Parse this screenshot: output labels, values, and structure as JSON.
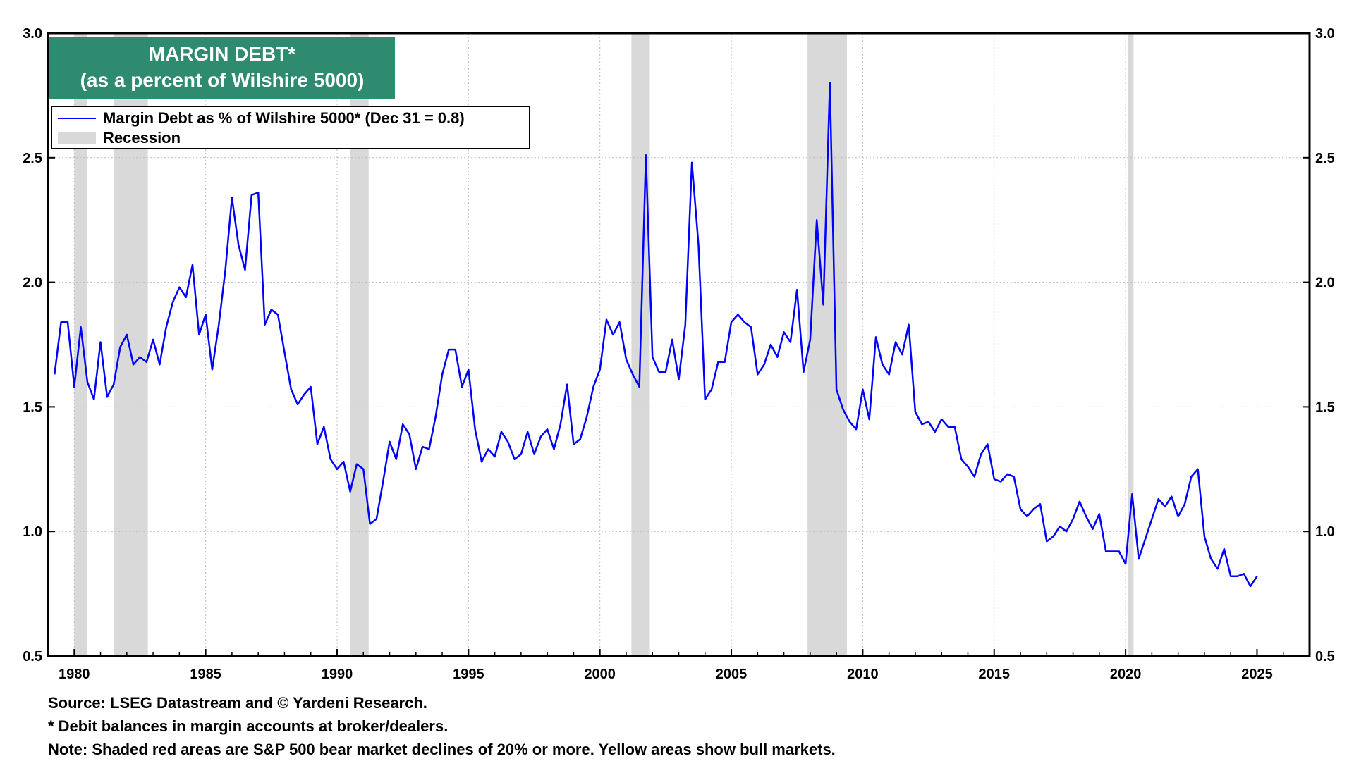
{
  "title": {
    "line1": "MARGIN DEBT*",
    "line2": "(as a percent of Wilshire 5000)"
  },
  "legend": {
    "series_label": "Margin Debt as % of Wilshire 5000*  (Dec 31 = 0.8)",
    "recession_label": "Recession"
  },
  "footnotes": {
    "source": "Source: LSEG Datastream and © Yardeni Research.",
    "note1": "* Debit balances in margin accounts at broker/dealers.",
    "note2": "Note: Shaded red areas are S&P 500 bear market declines of 20% or more. Yellow areas show bull markets."
  },
  "colors": {
    "series": "#0000ff",
    "recession": "#d9d9d9",
    "title_bg": "#2e8b6f",
    "grid": "#bbbbbb"
  },
  "chart_data": {
    "type": "line",
    "xlim": [
      1979,
      2027
    ],
    "ylim": [
      0.5,
      3.0
    ],
    "x_ticks": [
      1980,
      1985,
      1990,
      1995,
      2000,
      2005,
      2010,
      2015,
      2020,
      2025
    ],
    "x_tick_labels": [
      "1980",
      "1985",
      "1990",
      "1995",
      "2000",
      "2005",
      "2010",
      "2015",
      "2020",
      "2025"
    ],
    "y_ticks": [
      0.5,
      1.0,
      1.5,
      2.0,
      2.5,
      3.0
    ],
    "y_tick_labels": [
      "0.5",
      "1.0",
      "1.5",
      "2.0",
      "2.5",
      "3.0"
    ],
    "grid": true,
    "legend_position": "top-left",
    "recessions": [
      [
        1980.0,
        1980.5
      ],
      [
        1981.5,
        1982.8
      ],
      [
        1990.5,
        1991.2
      ],
      [
        2001.2,
        2001.9
      ],
      [
        2007.9,
        2009.4
      ],
      [
        2020.1,
        2020.3
      ]
    ],
    "series": [
      {
        "name": "Margin Debt as % of Wilshire 5000*  (Dec 31 = 0.8)",
        "x": [
          1979.25,
          1979.5,
          1979.75,
          1980.0,
          1980.25,
          1980.5,
          1980.75,
          1981.0,
          1981.25,
          1981.5,
          1981.75,
          1982.0,
          1982.25,
          1982.5,
          1982.75,
          1983.0,
          1983.25,
          1983.5,
          1983.75,
          1984.0,
          1984.25,
          1984.5,
          1984.75,
          1985.0,
          1985.25,
          1985.5,
          1985.75,
          1986.0,
          1986.25,
          1986.5,
          1986.75,
          1987.0,
          1987.25,
          1987.5,
          1987.75,
          1988.0,
          1988.25,
          1988.5,
          1988.75,
          1989.0,
          1989.25,
          1989.5,
          1989.75,
          1990.0,
          1990.25,
          1990.5,
          1990.75,
          1991.0,
          1991.25,
          1991.5,
          1991.75,
          1992.0,
          1992.25,
          1992.5,
          1992.75,
          1993.0,
          1993.25,
          1993.5,
          1993.75,
          1994.0,
          1994.25,
          1994.5,
          1994.75,
          1995.0,
          1995.25,
          1995.5,
          1995.75,
          1996.0,
          1996.25,
          1996.5,
          1996.75,
          1997.0,
          1997.25,
          1997.5,
          1997.75,
          1998.0,
          1998.25,
          1998.5,
          1998.75,
          1999.0,
          1999.25,
          1999.5,
          1999.75,
          2000.0,
          2000.25,
          2000.5,
          2000.75,
          2001.0,
          2001.25,
          2001.5,
          2001.75,
          2002.0,
          2002.25,
          2002.5,
          2002.75,
          2003.0,
          2003.25,
          2003.5,
          2003.75,
          2004.0,
          2004.25,
          2004.5,
          2004.75,
          2005.0,
          2005.25,
          2005.5,
          2005.75,
          2006.0,
          2006.25,
          2006.5,
          2006.75,
          2007.0,
          2007.25,
          2007.5,
          2007.75,
          2008.0,
          2008.25,
          2008.5,
          2008.75,
          2009.0,
          2009.25,
          2009.5,
          2009.75,
          2010.0,
          2010.25,
          2010.5,
          2010.75,
          2011.0,
          2011.25,
          2011.5,
          2011.75,
          2012.0,
          2012.25,
          2012.5,
          2012.75,
          2013.0,
          2013.25,
          2013.5,
          2013.75,
          2014.0,
          2014.25,
          2014.5,
          2014.75,
          2015.0,
          2015.25,
          2015.5,
          2015.75,
          2016.0,
          2016.25,
          2016.5,
          2016.75,
          2017.0,
          2017.25,
          2017.5,
          2017.75,
          2018.0,
          2018.25,
          2018.5,
          2018.75,
          2019.0,
          2019.25,
          2019.5,
          2019.75,
          2020.0,
          2020.25,
          2020.5,
          2020.75,
          2021.0,
          2021.25,
          2021.5,
          2021.75,
          2022.0,
          2022.25,
          2022.5,
          2022.75,
          2023.0,
          2023.25,
          2023.5,
          2023.75,
          2024.0,
          2024.25,
          2024.5,
          2024.75,
          2025.0
        ],
        "values": [
          1.63,
          1.84,
          1.84,
          1.58,
          1.82,
          1.6,
          1.53,
          1.76,
          1.54,
          1.59,
          1.74,
          1.79,
          1.67,
          1.7,
          1.68,
          1.77,
          1.67,
          1.82,
          1.92,
          1.98,
          1.94,
          2.07,
          1.79,
          1.87,
          1.65,
          1.83,
          2.05,
          2.34,
          2.15,
          2.05,
          2.35,
          2.36,
          1.83,
          1.89,
          1.87,
          1.72,
          1.57,
          1.51,
          1.55,
          1.58,
          1.35,
          1.42,
          1.29,
          1.25,
          1.28,
          1.16,
          1.27,
          1.25,
          1.03,
          1.05,
          1.2,
          1.36,
          1.29,
          1.43,
          1.39,
          1.25,
          1.34,
          1.33,
          1.46,
          1.63,
          1.73,
          1.73,
          1.58,
          1.65,
          1.41,
          1.28,
          1.33,
          1.3,
          1.4,
          1.36,
          1.29,
          1.31,
          1.4,
          1.31,
          1.38,
          1.41,
          1.33,
          1.43,
          1.59,
          1.35,
          1.37,
          1.46,
          1.58,
          1.65,
          1.85,
          1.79,
          1.84,
          1.69,
          1.63,
          1.58,
          2.51,
          1.7,
          1.64,
          1.64,
          1.77,
          1.61,
          1.83,
          2.48,
          2.15,
          1.53,
          1.57,
          1.68,
          1.68,
          1.84,
          1.87,
          1.84,
          1.82,
          1.63,
          1.67,
          1.75,
          1.7,
          1.8,
          1.76,
          1.97,
          1.64,
          1.77,
          2.25,
          1.91,
          2.8,
          1.57,
          1.49,
          1.44,
          1.41,
          1.57,
          1.45,
          1.78,
          1.67,
          1.63,
          1.76,
          1.71,
          1.83,
          1.48,
          1.43,
          1.44,
          1.4,
          1.45,
          1.42,
          1.42,
          1.29,
          1.26,
          1.22,
          1.31,
          1.35,
          1.21,
          1.2,
          1.23,
          1.22,
          1.09,
          1.06,
          1.09,
          1.11,
          0.96,
          0.98,
          1.02,
          1.0,
          1.05,
          1.12,
          1.06,
          1.01,
          1.07,
          0.92,
          0.92,
          0.92,
          0.87,
          1.15,
          0.89,
          0.97,
          1.05,
          1.13,
          1.1,
          1.14,
          1.06,
          1.11,
          1.22,
          1.25,
          0.98,
          0.89,
          0.85,
          0.93,
          0.82,
          0.82,
          0.83,
          0.78,
          0.82
        ]
      }
    ]
  }
}
